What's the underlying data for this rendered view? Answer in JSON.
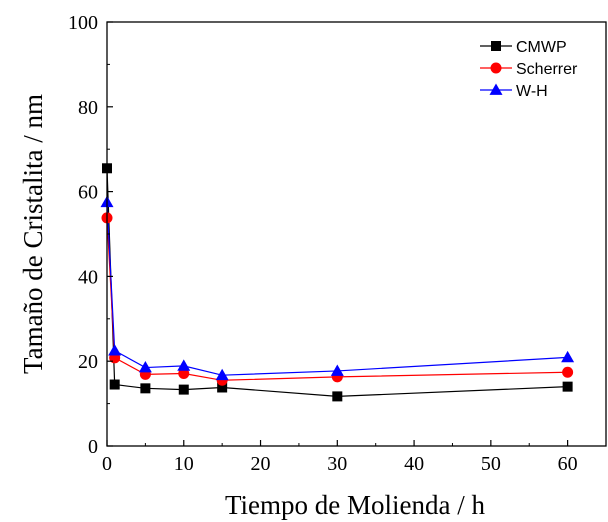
{
  "chart_data": {
    "type": "line",
    "title": "",
    "xlabel": "Tiempo de Molienda / h",
    "ylabel": "Tamaño de Cristalita / nm",
    "xlim": [
      0,
      65
    ],
    "ylim": [
      0,
      100
    ],
    "xticks": [
      0,
      10,
      20,
      30,
      40,
      50,
      60
    ],
    "yticks": [
      0,
      20,
      40,
      60,
      80,
      100
    ],
    "grid": false,
    "legend_position": "top-right",
    "series": [
      {
        "name": "CMWP",
        "marker": "square",
        "color": "#000000",
        "x": [
          0,
          1,
          5,
          10,
          15,
          30,
          60
        ],
        "y": [
          65.5,
          14.5,
          13.6,
          13.3,
          13.8,
          11.7,
          14.0
        ]
      },
      {
        "name": "Scherrer",
        "marker": "circle",
        "color": "#ff0000",
        "x": [
          0,
          1,
          5,
          10,
          15,
          30,
          60
        ],
        "y": [
          53.8,
          20.8,
          16.9,
          17.1,
          15.5,
          16.3,
          17.4
        ]
      },
      {
        "name": "W-H",
        "marker": "triangle",
        "color": "#0000ff",
        "x": [
          0,
          1,
          5,
          10,
          15,
          30,
          60
        ],
        "y": [
          57.5,
          22.5,
          18.5,
          18.9,
          16.7,
          17.7,
          20.9
        ]
      }
    ]
  }
}
